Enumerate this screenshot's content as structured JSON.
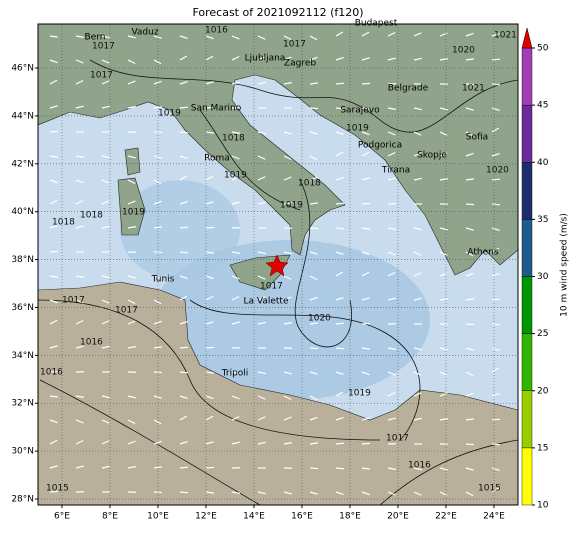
{
  "map": {
    "title": "Forecast of 2021092112 (f120)",
    "xlim": [
      5,
      25
    ],
    "ylim": [
      27.75,
      47.84
    ],
    "xticks": [
      {
        "value": 6,
        "label": "6°E"
      },
      {
        "value": 8,
        "label": "8°E"
      },
      {
        "value": 10,
        "label": "10°E"
      },
      {
        "value": 12,
        "label": "12°E"
      },
      {
        "value": 14,
        "label": "14°E"
      },
      {
        "value": 16,
        "label": "16°E"
      },
      {
        "value": 18,
        "label": "18°E"
      },
      {
        "value": 20,
        "label": "20°E"
      },
      {
        "value": 22,
        "label": "22°E"
      },
      {
        "value": 24,
        "label": "24°E"
      }
    ],
    "yticks": [
      {
        "value": 28,
        "label": "28°N"
      },
      {
        "value": 30,
        "label": "30°N"
      },
      {
        "value": 32,
        "label": "32°N"
      },
      {
        "value": 34,
        "label": "34°N"
      },
      {
        "value": 36,
        "label": "36°N"
      },
      {
        "value": 38,
        "label": "38°N"
      },
      {
        "value": 40,
        "label": "40°N"
      },
      {
        "value": 42,
        "label": "42°N"
      },
      {
        "value": 44,
        "label": "44°N"
      },
      {
        "value": 46,
        "label": "46°N"
      }
    ],
    "grid": true,
    "cities": [
      "Budapest",
      "Vaduz",
      "Bern",
      "Ljubljana",
      "Zagreb",
      "Belgrade",
      "San Marino",
      "Sarajevo",
      "Sofia",
      "Podgorica",
      "Skopje",
      "Roma",
      "Tirana",
      "Athens",
      "Tunis",
      "La Valette",
      "Tripoli"
    ],
    "isobar_labels": [
      "1016",
      "1017",
      "1017",
      "1017",
      "1020",
      "1021",
      "1021",
      "1019",
      "1019",
      "1018",
      "1019",
      "1018",
      "1020",
      "1018",
      "1019",
      "1018",
      "1019",
      "1017",
      "1017",
      "1017",
      "1016",
      "1020",
      "1019",
      "1016",
      "1016",
      "1017",
      "1015",
      "1015"
    ],
    "colorbar": {
      "label": "10 m wind speed (m/s)",
      "ticks": [
        10,
        15,
        20,
        25,
        30,
        35,
        40,
        45,
        50
      ],
      "colors": [
        "#ffff00",
        "#9acd00",
        "#32b400",
        "#009600",
        "#1e5a8c",
        "#1e2c6e",
        "#6a2c9a",
        "#a03cb4"
      ],
      "extend_color": "#e00000"
    }
  }
}
